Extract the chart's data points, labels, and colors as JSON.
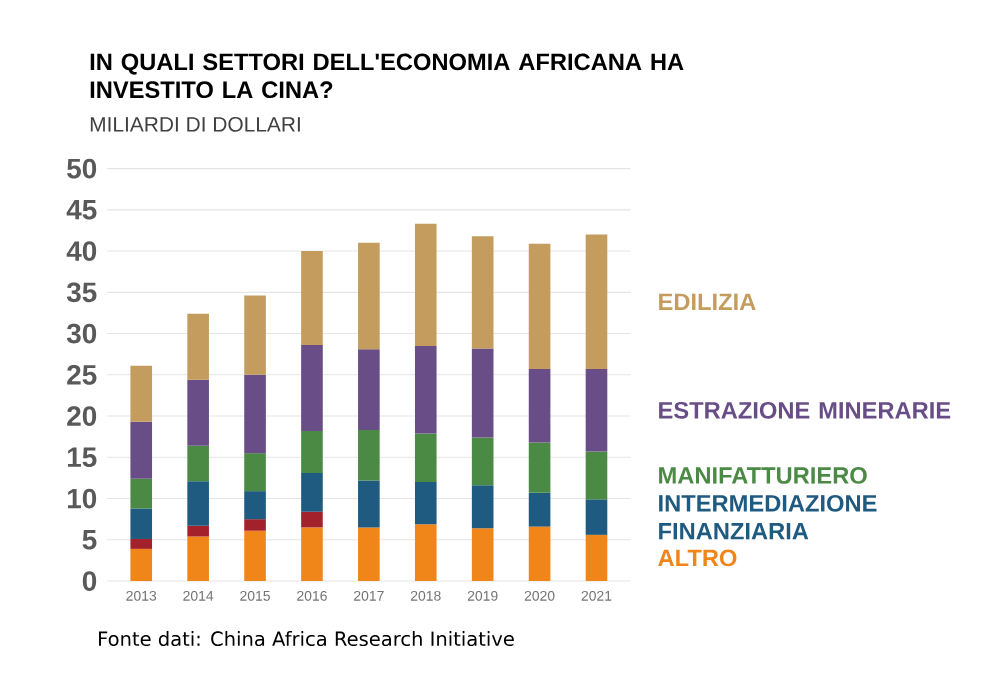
{
  "chart_data": {
    "type": "bar",
    "stacked": true,
    "title": "IN QUALI SETTORI DELL'ECONOMIA AFRICANA HA INVESTITO LA CINA?",
    "subtitle": "MILIARDI DI DOLLARI",
    "categories": [
      "2013",
      "2014",
      "2015",
      "2016",
      "2017",
      "2018",
      "2019",
      "2020",
      "2021"
    ],
    "series": [
      {
        "name": "ALTRO",
        "color": "#f0861a",
        "values": [
          3.9,
          5.4,
          6.1,
          6.5,
          6.5,
          6.9,
          6.4,
          6.6,
          5.6
        ]
      },
      {
        "color": "#a3212b",
        "values": [
          1.2,
          1.3,
          1.4,
          1.9,
          null,
          null,
          null,
          null,
          null
        ]
      },
      {
        "name": "INTERMEDIAZIONE FINANZIARIA",
        "color": "#1f5a80",
        "values": [
          3.7,
          5.4,
          3.4,
          4.7,
          5.7,
          5.1,
          5.2,
          4.1,
          4.3
        ]
      },
      {
        "name": "MANIFATTURIERO",
        "color": "#4b8a45",
        "values": [
          3.6,
          4.3,
          4.6,
          5.1,
          6.1,
          5.9,
          5.8,
          6.1,
          5.8
        ]
      },
      {
        "name": "ESTRAZIONE MINERARIE",
        "color": "#684d86",
        "values": [
          6.9,
          8.0,
          9.5,
          10.4,
          9.8,
          10.6,
          10.8,
          8.9,
          10.0
        ]
      },
      {
        "name": "EDILIZIA",
        "color": "#c49c5e",
        "values": [
          6.8,
          8.0,
          9.6,
          11.4,
          12.9,
          14.8,
          13.6,
          15.2,
          16.3
        ]
      }
    ],
    "ylim": [
      0,
      50
    ],
    "yticks": [
      0,
      5,
      10,
      15,
      20,
      25,
      30,
      35,
      40,
      45,
      50
    ],
    "grid": "y",
    "legend": "right",
    "annotations": [
      "Fonte dati: China Africa Research Initiative"
    ]
  }
}
